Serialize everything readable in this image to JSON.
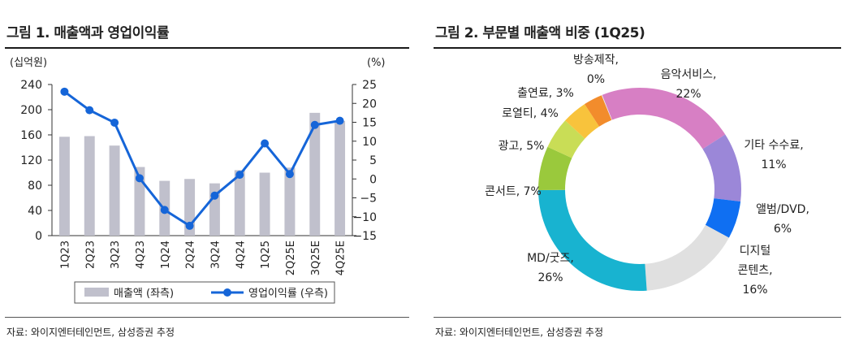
{
  "left_panel": {
    "title": "그림 1. 매출액과 영업이익률",
    "source": "자료: 와이지엔터테인먼트, 삼성증권 추정"
  },
  "right_panel": {
    "title": "그림 2. 부문별 매출액 비중 (1Q25)",
    "source": "자료: 와이지엔터테인먼트, 삼성증권 추정"
  },
  "chart_data": [
    {
      "type": "bar",
      "title": "그림 1. 매출액과 영업이익률",
      "categories": [
        "1Q23",
        "2Q23",
        "3Q23",
        "4Q23",
        "1Q24",
        "2Q24",
        "3Q24",
        "4Q24",
        "1Q25",
        "2Q25E",
        "3Q25E",
        "4Q25E"
      ],
      "series": [
        {
          "name": "매출액 (좌측)",
          "type": "bar",
          "axis": "left",
          "color": "#c0c0cc",
          "values": [
            157,
            158,
            143,
            109,
            87,
            90,
            83,
            104,
            100,
            108,
            195,
            182
          ]
        },
        {
          "name": "영업이익률 (우측)",
          "type": "line",
          "axis": "right",
          "color": "#1565d8",
          "values": [
            23.1,
            18.2,
            14.9,
            0.2,
            -8.2,
            -12.4,
            -4.4,
            1.1,
            9.4,
            1.3,
            14.3,
            15.4
          ]
        }
      ],
      "left_axis": {
        "unit": "(십억원)",
        "ticks": [
          "240",
          "200",
          "160",
          "120",
          "80",
          "40",
          "0"
        ],
        "ylim": [
          0,
          240
        ]
      },
      "right_axis": {
        "unit": "(%)",
        "ticks": [
          "25",
          "20",
          "15",
          "10",
          "5",
          "0",
          "−5",
          "−10",
          "−15"
        ],
        "ylim": [
          -15,
          25
        ]
      },
      "legend_position": "bottom-center",
      "grid": false
    },
    {
      "type": "pie",
      "subtype": "donut",
      "title": "그림 2. 부문별 매출액 비중 (1Q25)",
      "slices": [
        {
          "label": [
            "음악서비스,",
            "22%"
          ],
          "value": 22,
          "color": "#d77fc4"
        },
        {
          "label": [
            "기타 수수료,",
            "11%"
          ],
          "value": 11,
          "color": "#9b87d8"
        },
        {
          "label": [
            "앨범/DVD,",
            "6%"
          ],
          "value": 6,
          "color": "#0f6ff2"
        },
        {
          "label": [
            "디지털",
            "콘텐츠,",
            "16%"
          ],
          "value": 16,
          "color": "#e0e0e0"
        },
        {
          "label": [
            "MD/굿즈,",
            "26%"
          ],
          "value": 26,
          "color": "#18b3d0"
        },
        {
          "label": [
            "콘서트, 7%"
          ],
          "value": 7,
          "color": "#9ac93c"
        },
        {
          "label": [
            "광고, 5%"
          ],
          "value": 5,
          "color": "#c9dd56"
        },
        {
          "label": [
            "로열티, 4%"
          ],
          "value": 4,
          "color": "#f8c33c"
        },
        {
          "label": [
            "출연료, 3%"
          ],
          "value": 3,
          "color": "#f28c2c"
        },
        {
          "label": [
            "방송제작,",
            "0%"
          ],
          "value": 0.1,
          "color": "#e8e8e8"
        }
      ],
      "grid": false
    }
  ]
}
